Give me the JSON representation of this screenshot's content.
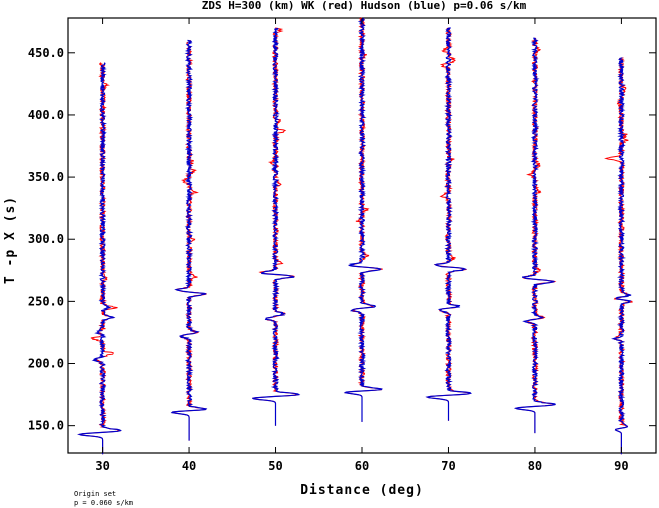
{
  "chart_data": {
    "type": "line",
    "title": "ZDS H=300 (km) WK (red) Hudson (blue) p=0.06 s/km",
    "xlabel": "Distance (deg)",
    "ylabel": "T -p X (s)",
    "xlim": [
      26,
      94
    ],
    "ylim": [
      128,
      478
    ],
    "x_ticks": [
      30,
      40,
      50,
      60,
      70,
      80,
      90
    ],
    "x_tick_labels": [
      "30",
      "40",
      "50",
      "60",
      "70",
      "80",
      "90"
    ],
    "y_ticks": [
      150,
      200,
      250,
      300,
      350,
      400,
      450
    ],
    "y_tick_labels": [
      "150.0",
      "200.0",
      "250.0",
      "300.0",
      "350.0",
      "400.0",
      "450.0"
    ],
    "grid": false,
    "series": [
      {
        "name": "WK",
        "color": "#ff0000"
      },
      {
        "name": "Hudson",
        "color": "#0000cc"
      }
    ],
    "traces": [
      {
        "distance": 30,
        "t_start": 127,
        "t_end": 442,
        "p_arrival": 143,
        "pulses": [
          [
            143,
            -2.3
          ],
          [
            146,
            1.8
          ],
          [
            203,
            -0.7
          ],
          [
            237,
            0.9
          ],
          [
            225,
            -0.5
          ],
          [
            245,
            0.5
          ]
        ],
        "red_extra": [
          [
            208,
            1.0
          ],
          [
            220,
            -1.0
          ],
          [
            245,
            0.8
          ],
          [
            268,
            0.4
          ],
          [
            424,
            0.3
          ]
        ]
      },
      {
        "distance": 40,
        "t_start": 138,
        "t_end": 460,
        "p_arrival": 161,
        "pulses": [
          [
            161,
            -2.0
          ],
          [
            163,
            2.0
          ],
          [
            222,
            -0.8
          ],
          [
            225,
            0.8
          ],
          [
            256,
            1.5
          ],
          [
            259,
            -1.2
          ]
        ],
        "red_extra": [
          [
            270,
            0.7
          ],
          [
            300,
            0.5
          ],
          [
            338,
            0.6
          ],
          [
            347,
            -0.6
          ],
          [
            355,
            0.5
          ],
          [
            362,
            0.3
          ]
        ]
      },
      {
        "distance": 50,
        "t_start": 150,
        "t_end": 470,
        "p_arrival": 172,
        "pulses": [
          [
            172,
            -2.3
          ],
          [
            175,
            2.3
          ],
          [
            236,
            -0.9
          ],
          [
            240,
            0.8
          ],
          [
            270,
            1.8
          ],
          [
            273,
            -1.4
          ]
        ],
        "red_extra": [
          [
            281,
            0.6
          ],
          [
            345,
            0.5
          ],
          [
            362,
            -0.4
          ],
          [
            387,
            1.0
          ],
          [
            395,
            0.4
          ],
          [
            468,
            0.5
          ]
        ]
      },
      {
        "distance": 60,
        "t_start": 153,
        "t_end": 478,
        "p_arrival": 177,
        "pulses": [
          [
            177,
            -2.0
          ],
          [
            179,
            2.3
          ],
          [
            243,
            -1.0
          ],
          [
            246,
            1.2
          ],
          [
            276,
            1.9
          ],
          [
            279,
            -1.2
          ]
        ],
        "red_extra": [
          [
            287,
            0.5
          ],
          [
            315,
            -0.5
          ],
          [
            324,
            0.5
          ],
          [
            448,
            0.3
          ]
        ]
      },
      {
        "distance": 70,
        "t_start": 154,
        "t_end": 470,
        "p_arrival": 173,
        "pulses": [
          [
            173,
            -2.1
          ],
          [
            176,
            2.2
          ],
          [
            243,
            -0.9
          ],
          [
            246,
            1.0
          ],
          [
            276,
            1.7
          ],
          [
            279,
            -1.3
          ]
        ],
        "red_extra": [
          [
            285,
            0.5
          ],
          [
            335,
            -0.6
          ],
          [
            364,
            0.4
          ],
          [
            440,
            -0.6
          ],
          [
            444,
            0.7
          ],
          [
            452,
            -0.4
          ]
        ]
      },
      {
        "distance": 80,
        "t_start": 144,
        "t_end": 462,
        "p_arrival": 164,
        "pulses": [
          [
            164,
            -1.9
          ],
          [
            167,
            2.0
          ],
          [
            234,
            -0.9
          ],
          [
            237,
            0.8
          ],
          [
            266,
            1.8
          ],
          [
            269,
            -1.2
          ]
        ],
        "red_extra": [
          [
            275,
            0.5
          ],
          [
            338,
            0.4
          ],
          [
            352,
            -0.6
          ],
          [
            360,
            0.4
          ],
          [
            453,
            0.3
          ]
        ]
      },
      {
        "distance": 90,
        "t_start": 127,
        "t_end": 446,
        "p_arrival": 147,
        "pulses": [
          [
            147,
            -0.7
          ],
          [
            149,
            0.7
          ],
          [
            220,
            -0.6
          ],
          [
            252,
            -0.7
          ],
          [
            250,
            1.0
          ],
          [
            255,
            0.8
          ]
        ],
        "red_extra": [
          [
            365,
            -1.5
          ],
          [
            380,
            0.5
          ],
          [
            384,
            0.4
          ],
          [
            409,
            -0.3
          ],
          [
            421,
            0.5
          ]
        ]
      }
    ]
  },
  "footer": {
    "line1": "Origin set",
    "line2": "p = 0.060 s/km"
  }
}
